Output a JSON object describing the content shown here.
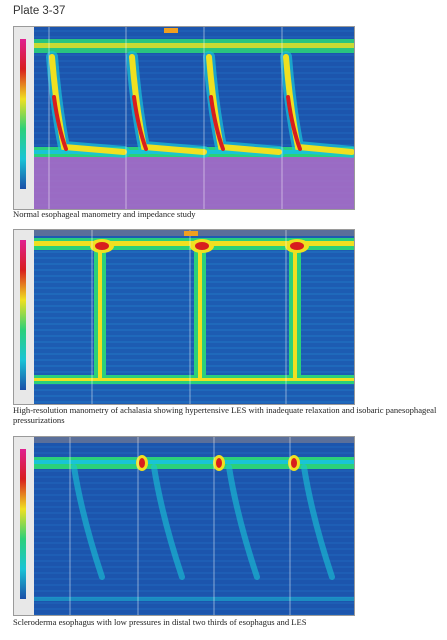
{
  "plate": {
    "title": "Plate 3-37"
  },
  "figures": [
    {
      "id": "normal",
      "caption": "Normal esophageal manometry and impedance study"
    },
    {
      "id": "achalasia",
      "caption": "High-resolution manometry of achalasia showing hypertensive LES with inadequate relaxation and isobaric panesophageal pressurizations"
    },
    {
      "id": "scleroderma",
      "caption": "Scleroderma esophagus with low pressures in distal two thirds of esophagus and LES"
    }
  ],
  "colors": {
    "background_low": "#1a4fa8",
    "mid": "#19c4d6",
    "band": "#2bd07a",
    "high": "#f0e020",
    "peak": "#d81e1e",
    "impedance": "#b070c8"
  }
}
